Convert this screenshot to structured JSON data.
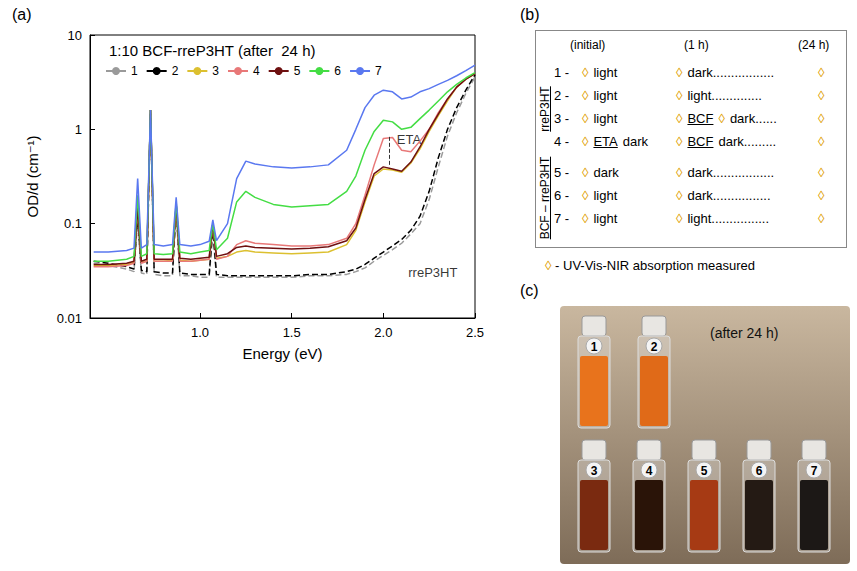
{
  "panel_labels": {
    "a": "(a)",
    "b": "(b)",
    "c": "(c)"
  },
  "chart_data": {
    "type": "line",
    "title": "1:10 BCF-rreP3HT (after  24 h)",
    "x_label": "Energy (eV)",
    "y_label": "OD/d (cm⁻¹)",
    "log": "y",
    "grid": false,
    "legend": "top-left",
    "xlim": [
      0.4,
      2.5
    ],
    "xticks": [
      {
        "value": 1,
        "label": "1.0"
      },
      1.5,
      {
        "value": 2,
        "label": "2.0"
      },
      2.5
    ],
    "ylim": [
      0.01,
      10
    ],
    "yticks": [
      0.01,
      0.1,
      1,
      10
    ],
    "x": [
      0.42,
      0.5,
      0.6,
      0.64,
      0.66,
      0.68,
      0.71,
      0.73,
      0.75,
      0.8,
      0.85,
      0.87,
      0.89,
      0.95,
      1.0,
      1.05,
      1.07,
      1.09,
      1.15,
      1.2,
      1.25,
      1.3,
      1.4,
      1.5,
      1.6,
      1.7,
      1.8,
      1.85,
      1.9,
      1.95,
      2.0,
      2.05,
      2.1,
      2.15,
      2.2,
      2.25,
      2.3,
      2.35,
      2.4,
      2.45,
      2.5
    ],
    "series": [
      {
        "name": "1",
        "color": "#9a9a9a",
        "line_style": "dashed",
        "values": [
          0.038,
          0.036,
          0.033,
          0.031,
          0.11,
          0.03,
          0.029,
          1.5,
          0.029,
          0.028,
          0.028,
          0.14,
          0.028,
          0.028,
          0.027,
          0.027,
          0.08,
          0.027,
          0.027,
          0.027,
          0.027,
          0.027,
          0.027,
          0.027,
          0.028,
          0.028,
          0.029,
          0.031,
          0.034,
          0.04,
          0.046,
          0.053,
          0.062,
          0.078,
          0.1,
          0.18,
          0.4,
          0.85,
          1.5,
          2.4,
          3.6
        ]
      },
      {
        "name": "2",
        "color": "#000000",
        "line_style": "dashed",
        "values": [
          0.04,
          0.038,
          0.035,
          0.033,
          0.12,
          0.032,
          0.031,
          1.6,
          0.031,
          0.03,
          0.03,
          0.15,
          0.03,
          0.029,
          0.029,
          0.029,
          0.09,
          0.029,
          0.028,
          0.028,
          0.028,
          0.028,
          0.028,
          0.028,
          0.029,
          0.029,
          0.031,
          0.033,
          0.037,
          0.043,
          0.05,
          0.058,
          0.068,
          0.085,
          0.12,
          0.22,
          0.5,
          1.0,
          1.7,
          2.6,
          3.8
        ]
      },
      {
        "name": "3",
        "color": "#dcc030",
        "line_style": "solid",
        "values": [
          0.036,
          0.036,
          0.037,
          0.039,
          0.15,
          0.039,
          0.04,
          1.6,
          0.04,
          0.04,
          0.041,
          0.16,
          0.041,
          0.04,
          0.041,
          0.042,
          0.1,
          0.043,
          0.045,
          0.05,
          0.052,
          0.05,
          0.049,
          0.048,
          0.049,
          0.05,
          0.06,
          0.085,
          0.17,
          0.32,
          0.38,
          0.37,
          0.35,
          0.44,
          0.62,
          0.95,
          1.4,
          2.0,
          2.8,
          3.4,
          3.9
        ]
      },
      {
        "name": "4",
        "color": "#e87878",
        "line_style": "solid",
        "values": [
          0.035,
          0.035,
          0.036,
          0.038,
          0.15,
          0.038,
          0.04,
          1.6,
          0.04,
          0.04,
          0.04,
          0.16,
          0.04,
          0.04,
          0.041,
          0.042,
          0.1,
          0.042,
          0.045,
          0.06,
          0.066,
          0.062,
          0.06,
          0.058,
          0.058,
          0.06,
          0.07,
          0.1,
          0.2,
          0.42,
          0.8,
          0.82,
          0.6,
          0.58,
          0.75,
          1.0,
          1.5,
          2.1,
          2.8,
          3.4,
          3.9
        ]
      },
      {
        "name": "5",
        "color": "#6e1010",
        "line_style": "solid",
        "values": [
          0.037,
          0.037,
          0.038,
          0.04,
          0.15,
          0.04,
          0.042,
          1.6,
          0.042,
          0.042,
          0.042,
          0.16,
          0.043,
          0.042,
          0.043,
          0.044,
          0.1,
          0.045,
          0.048,
          0.056,
          0.058,
          0.056,
          0.055,
          0.054,
          0.055,
          0.057,
          0.066,
          0.09,
          0.18,
          0.34,
          0.4,
          0.38,
          0.36,
          0.45,
          0.65,
          1.0,
          1.45,
          2.1,
          2.8,
          3.4,
          3.9
        ]
      },
      {
        "name": "6",
        "color": "#44dd44",
        "line_style": "solid",
        "values": [
          0.04,
          0.04,
          0.042,
          0.045,
          0.2,
          0.045,
          0.048,
          1.6,
          0.048,
          0.047,
          0.048,
          0.17,
          0.05,
          0.048,
          0.05,
          0.052,
          0.1,
          0.053,
          0.07,
          0.17,
          0.22,
          0.19,
          0.16,
          0.15,
          0.155,
          0.16,
          0.22,
          0.32,
          0.6,
          0.95,
          1.25,
          1.2,
          1.0,
          1.05,
          1.3,
          1.6,
          2.0,
          2.5,
          3.0,
          3.5,
          4.0
        ]
      },
      {
        "name": "7",
        "color": "#5a78f0",
        "line_style": "solid",
        "values": [
          0.05,
          0.05,
          0.052,
          0.055,
          0.3,
          0.055,
          0.06,
          1.6,
          0.06,
          0.058,
          0.06,
          0.19,
          0.06,
          0.058,
          0.06,
          0.065,
          0.11,
          0.066,
          0.1,
          0.3,
          0.46,
          0.43,
          0.4,
          0.39,
          0.4,
          0.42,
          0.6,
          1.0,
          1.7,
          2.3,
          2.6,
          2.5,
          2.1,
          2.2,
          2.5,
          2.7,
          3.0,
          3.3,
          3.7,
          4.2,
          4.8
        ]
      }
    ],
    "annotations": [
      {
        "text": "ETA",
        "x": 2.14,
        "y": 0.78,
        "arrow": {
          "x": 2.03,
          "from": 0.42,
          "to": 0.85
        }
      },
      {
        "text": "rreP3HT",
        "x": 2.27,
        "y": 0.03
      }
    ]
  },
  "protocol": {
    "headers": [
      "(initial)",
      "(1 h)",
      "(24 h)"
    ],
    "marker": "◊",
    "groups": [
      {
        "label": "rreP3HT",
        "rows": [
          {
            "label": "1 -",
            "initial": [
              "◊",
              "light"
            ],
            "h1": [
              "◊",
              "dark................."
            ],
            "h24": [
              "◊"
            ]
          },
          {
            "label": "2 -",
            "initial": [
              "◊",
              "light"
            ],
            "h1": [
              "◊",
              "light.............."
            ],
            "h24": [
              "◊"
            ]
          },
          {
            "label": "3 -",
            "initial": [
              "◊",
              "light"
            ],
            "h1": [
              "◊",
              {
                "text": "BCF",
                "underline": true
              },
              "◊",
              "dark......"
            ],
            "h24": [
              "◊"
            ]
          },
          {
            "label": "4 -",
            "initial": [
              "◊",
              {
                "text": "ETA",
                "underline": true
              },
              "dark"
            ],
            "h1": [
              "◊",
              {
                "text": "BCF",
                "underline": true
              },
              "dark........."
            ],
            "h24": [
              "◊"
            ]
          }
        ]
      },
      {
        "label": "BCF – rreP3HT",
        "rows": [
          {
            "label": "5 -",
            "initial": [
              "◊",
              "dark"
            ],
            "h1": [
              "◊",
              "dark................."
            ],
            "h24": [
              "◊"
            ]
          },
          {
            "label": "6 -",
            "initial": [
              "◊",
              "light"
            ],
            "h1": [
              "◊",
              "dark................"
            ],
            "h24": [
              "◊"
            ]
          },
          {
            "label": "7 -",
            "initial": [
              "◊",
              "light"
            ],
            "h1": [
              "◊",
              "light................"
            ],
            "h24": [
              "◊"
            ]
          }
        ]
      }
    ],
    "note": {
      "marker": "◊",
      "text": "- UV-Vis-NIR absorption measured"
    }
  },
  "photo": {
    "caption": "(after 24 h)",
    "vials": [
      {
        "label": "1",
        "row": 1,
        "color": "#e8731c"
      },
      {
        "label": "2",
        "row": 1,
        "color": "#e06a18"
      },
      {
        "label": "3",
        "row": 2,
        "color": "#7a2a10"
      },
      {
        "label": "4",
        "row": 2,
        "color": "#2a1408"
      },
      {
        "label": "5",
        "row": 2,
        "color": "#a63a14"
      },
      {
        "label": "6",
        "row": 2,
        "color": "#241a14"
      },
      {
        "label": "7",
        "row": 2,
        "color": "#1c1816"
      }
    ]
  }
}
